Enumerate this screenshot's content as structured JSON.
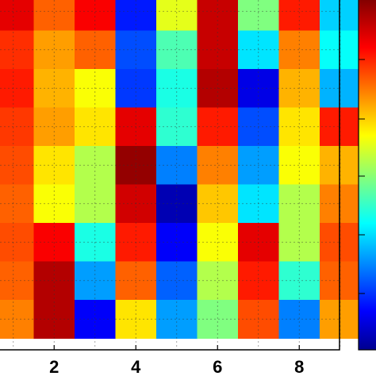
{
  "chart_data": {
    "type": "heatmap",
    "title": "",
    "xlabel": "",
    "ylabel": "",
    "x_tick_labels": [
      "2",
      "4",
      "6",
      "8"
    ],
    "x_tick_values": [
      2,
      4,
      6,
      8
    ],
    "value_range": [
      0,
      1
    ],
    "colormap": "jet",
    "colorbar": true,
    "grid": true,
    "columns_visible": 9,
    "rows": [
      [
        0.9,
        0.78,
        0.88,
        0.15,
        0.6,
        0.93,
        0.5,
        0.85,
        0.33
      ],
      [
        0.83,
        0.72,
        0.78,
        0.2,
        0.45,
        0.93,
        0.35,
        0.75,
        0.38
      ],
      [
        0.85,
        0.7,
        0.62,
        0.18,
        0.4,
        0.95,
        0.1,
        0.7,
        0.3
      ],
      [
        0.82,
        0.72,
        0.65,
        0.9,
        0.42,
        0.85,
        0.2,
        0.65,
        0.85
      ],
      [
        0.8,
        0.65,
        0.55,
        0.98,
        0.25,
        0.75,
        0.28,
        0.62,
        0.7
      ],
      [
        0.78,
        0.62,
        0.55,
        0.92,
        0.05,
        0.68,
        0.35,
        0.55,
        0.75
      ],
      [
        0.8,
        0.88,
        0.4,
        0.85,
        0.12,
        0.62,
        0.9,
        0.55,
        0.8
      ],
      [
        0.78,
        0.95,
        0.28,
        0.78,
        0.22,
        0.55,
        0.85,
        0.42,
        0.78
      ],
      [
        0.75,
        0.95,
        0.12,
        0.65,
        0.28,
        0.5,
        0.8,
        0.25,
        0.72
      ]
    ]
  }
}
